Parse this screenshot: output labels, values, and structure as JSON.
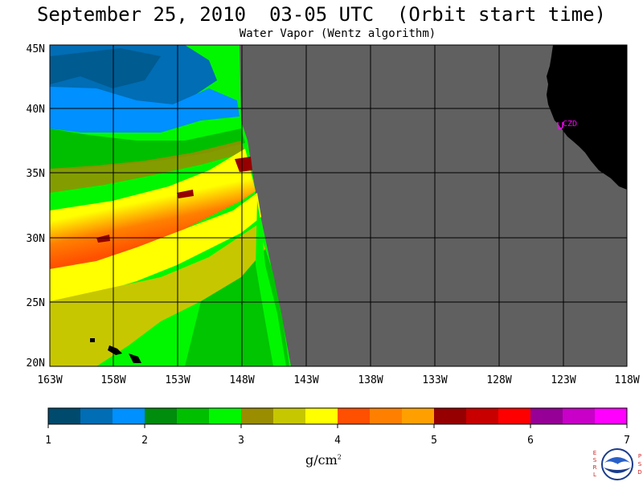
{
  "title": "September 25, 2010  03-05 UTC  (Orbit start time)",
  "subtitle": "Water Vapor (Wentz algorithm)",
  "lat_labels": [
    "45N",
    "40N",
    "35N",
    "30N",
    "25N",
    "20N"
  ],
  "lon_labels": [
    "163W",
    "158W",
    "153W",
    "148W",
    "143W",
    "138W",
    "133W",
    "128W",
    "123W",
    "118W"
  ],
  "station_label": "CZD",
  "colorbar": {
    "colors": [
      "#004a6e",
      "#006db5",
      "#0090ff",
      "#008c0c",
      "#00bf00",
      "#00f700",
      "#9a8d00",
      "#c7c700",
      "#ffff00",
      "#ff4f00",
      "#ff8000",
      "#ffa000",
      "#960000",
      "#c80000",
      "#ff0000",
      "#960096",
      "#c800c8",
      "#ff00ff"
    ],
    "ticks": [
      "1",
      "2",
      "3",
      "4",
      "5",
      "6",
      "7"
    ],
    "units_base": "g/cm",
    "units_exp": "2"
  },
  "colors": {
    "no_data": "#606060",
    "land": "#000000",
    "station_marker": "#ff00ff"
  },
  "logo_letters": {
    "left": [
      "E",
      "S",
      "R",
      "L"
    ],
    "right": [
      "P",
      "S",
      "D"
    ],
    "seal": "NOAA"
  }
}
